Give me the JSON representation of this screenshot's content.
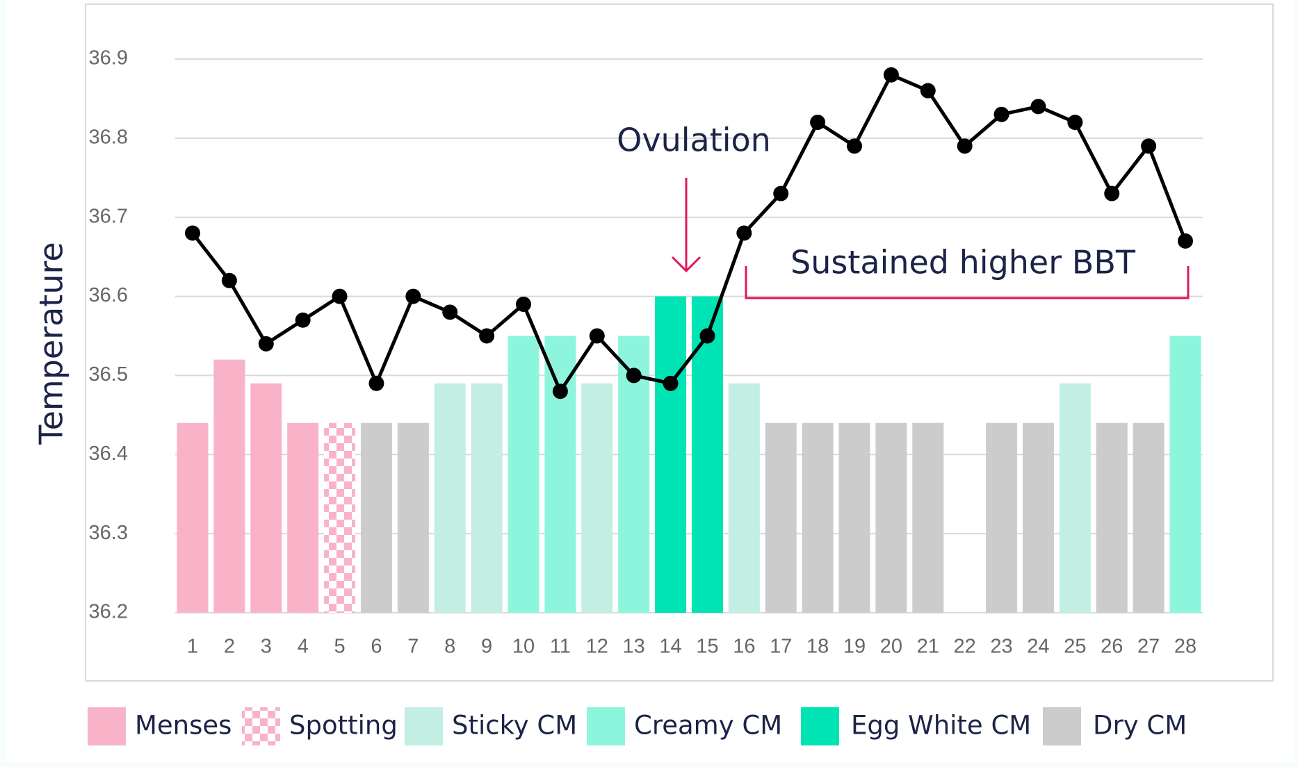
{
  "chart_data": {
    "type": "bar",
    "ylabel": "Temperature",
    "categories": [
      "1",
      "2",
      "3",
      "4",
      "5",
      "6",
      "7",
      "8",
      "9",
      "10",
      "11",
      "12",
      "13",
      "14",
      "15",
      "16",
      "17",
      "18",
      "19",
      "20",
      "21",
      "22",
      "23",
      "24",
      "25",
      "26",
      "27",
      "28"
    ],
    "ylim": [
      36.2,
      36.9
    ],
    "yticks": [
      36.2,
      36.3,
      36.4,
      36.5,
      36.6,
      36.7,
      36.8,
      36.9
    ],
    "grid": true,
    "series": [
      {
        "name": "Menses",
        "color": "#f8b3c8",
        "values": [
          36.44,
          36.52,
          36.49,
          36.44,
          null,
          null,
          null,
          null,
          null,
          null,
          null,
          null,
          null,
          null,
          null,
          null,
          null,
          null,
          null,
          null,
          null,
          null,
          null,
          null,
          null,
          null,
          null,
          null
        ]
      },
      {
        "name": "Spotting",
        "color": "#f8b3c8",
        "pattern": "checker",
        "values": [
          null,
          null,
          null,
          null,
          36.44,
          null,
          null,
          null,
          null,
          null,
          null,
          null,
          null,
          null,
          null,
          null,
          null,
          null,
          null,
          null,
          null,
          null,
          null,
          null,
          null,
          null,
          null,
          null
        ]
      },
      {
        "name": "Sticky CM",
        "color": "#c2eee3",
        "values": [
          null,
          null,
          null,
          null,
          null,
          null,
          null,
          36.49,
          36.49,
          null,
          null,
          36.49,
          null,
          null,
          null,
          36.49,
          null,
          null,
          null,
          null,
          null,
          null,
          null,
          null,
          36.49,
          null,
          null,
          null
        ]
      },
      {
        "name": "Creamy CM",
        "color": "#8ef5dd",
        "values": [
          null,
          null,
          null,
          null,
          null,
          null,
          null,
          null,
          null,
          36.55,
          36.55,
          null,
          36.55,
          null,
          null,
          null,
          null,
          null,
          null,
          null,
          null,
          null,
          null,
          null,
          null,
          null,
          null,
          36.55
        ]
      },
      {
        "name": "Egg White CM",
        "color": "#00e3b5",
        "values": [
          null,
          null,
          null,
          null,
          null,
          null,
          null,
          null,
          null,
          null,
          null,
          null,
          null,
          36.6,
          36.6,
          null,
          null,
          null,
          null,
          null,
          null,
          null,
          null,
          null,
          null,
          null,
          null,
          null
        ]
      },
      {
        "name": "Dry CM",
        "color": "#cccccc",
        "values": [
          null,
          null,
          null,
          null,
          null,
          36.44,
          36.44,
          null,
          null,
          null,
          null,
          null,
          null,
          null,
          null,
          null,
          36.44,
          36.44,
          36.44,
          36.44,
          36.44,
          null,
          36.44,
          36.44,
          null,
          36.44,
          36.44,
          null
        ]
      }
    ],
    "line": {
      "color": "#000000",
      "values": [
        36.68,
        36.62,
        36.54,
        36.57,
        36.6,
        36.49,
        36.6,
        36.58,
        36.55,
        36.59,
        36.48,
        36.55,
        36.5,
        36.49,
        36.55,
        36.68,
        36.73,
        36.82,
        36.79,
        36.88,
        36.86,
        36.79,
        36.83,
        36.84,
        36.82,
        36.73,
        36.79,
        36.67
      ]
    },
    "annotations": [
      "Ovulation",
      "Sustained higher BBT"
    ],
    "annotation_color": "#e0175f"
  }
}
